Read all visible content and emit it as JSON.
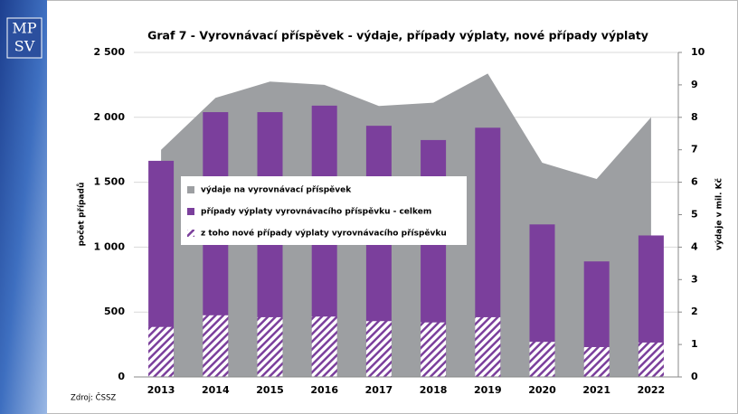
{
  "logo": [
    "MP",
    "SV"
  ],
  "chart_data": {
    "type": "bar",
    "title": "Graf 7 - Vyrovnávací příspěvek - výdaje, případy výplaty, nové případy výplaty",
    "y_label": "počet případů",
    "y2_label": "výdaje v mil. Kč",
    "source": "Zdroj: ČSSZ",
    "categories": [
      "2013",
      "2014",
      "2015",
      "2016",
      "2017",
      "2018",
      "2019",
      "2020",
      "2021",
      "2022"
    ],
    "series": [
      {
        "name": "výdaje na  vyrovnávací příspěvek",
        "kind": "area",
        "axis": "y2",
        "color": "#9d9fa2",
        "values": [
          7.0,
          8.6,
          9.1,
          9.0,
          8.35,
          8.45,
          9.35,
          6.6,
          6.1,
          8.0
        ]
      },
      {
        "name": "případy výplaty vyrovnávacího příspěvku -  celkem",
        "kind": "bar",
        "color": "#7b3f9c",
        "values": [
          1665,
          2040,
          2040,
          2090,
          1935,
          1825,
          1920,
          1175,
          890,
          1090
        ]
      },
      {
        "name": "z toho nové  případy výplaty  vyrovnávacího příspěvku",
        "kind": "hatched-bar",
        "color": "#7b3f9c",
        "values": [
          385,
          475,
          460,
          465,
          430,
          420,
          460,
          270,
          230,
          265
        ]
      }
    ],
    "ylim": [
      0,
      2500
    ],
    "yticks": [
      0,
      500,
      {
        "value": 1000,
        "label": "1 000"
      },
      {
        "value": 1500,
        "label": "1 500"
      },
      {
        "value": 2000,
        "label": "2 000"
      },
      {
        "value": 2500,
        "label": "2 500"
      }
    ],
    "y2lim": [
      0,
      10
    ],
    "y2ticks": [
      0,
      1,
      2,
      3,
      4,
      5,
      6,
      7,
      8,
      9,
      10
    ],
    "grid": true
  }
}
